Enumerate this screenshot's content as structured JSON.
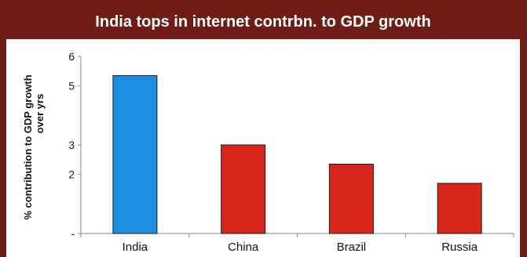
{
  "title": "India tops in internet contrbn. to GDP growth",
  "colors": {
    "frame": "#6e1c15",
    "highlight": "#1e8fe0",
    "default": "#d8261c"
  },
  "chart_data": {
    "type": "bar",
    "title": "India tops in internet contrbn. to GDP growth",
    "categories": [
      "India",
      "China",
      "Brazil",
      "Russia"
    ],
    "values": [
      5.35,
      3.0,
      2.35,
      1.7
    ],
    "ylabel_lines": [
      "% contribution to GDP growth",
      "over yrs"
    ],
    "xlabel": "",
    "ylim": [
      0,
      6
    ],
    "yticks": [
      0,
      2,
      3,
      5,
      6
    ],
    "ytick_labels": [
      "-",
      "2",
      "3",
      "5",
      "6"
    ],
    "bar_colors": [
      "#1e8fe0",
      "#d8261c",
      "#d8261c",
      "#d8261c"
    ],
    "grid": false,
    "legend": "none"
  }
}
